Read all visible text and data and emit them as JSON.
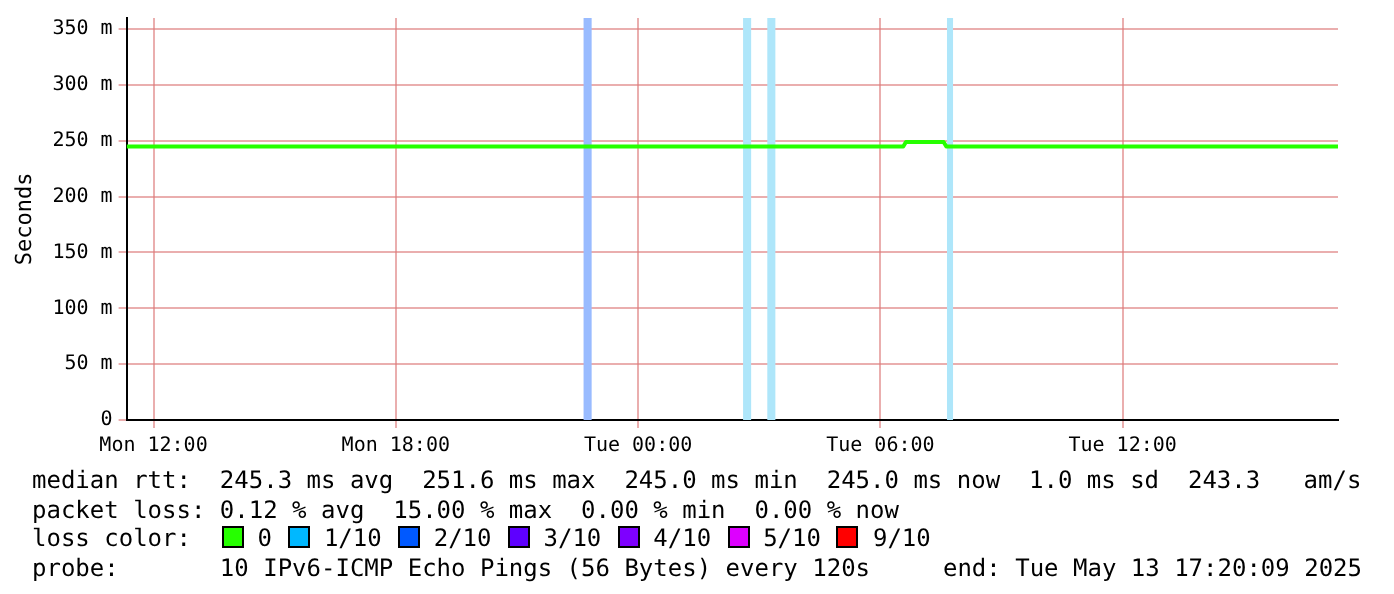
{
  "chart_data": {
    "type": "line",
    "ylabel": "Seconds",
    "x": [
      "2025-05-12T11:20",
      "2025-05-13T06:34",
      "2025-05-13T06:38",
      "2025-05-13T07:34",
      "2025-05-13T07:38",
      "2025-05-13T17:20"
    ],
    "series": [
      {
        "name": "0",
        "color": "#26ff00",
        "values": [
          245,
          245,
          249,
          249,
          245,
          245
        ]
      },
      {
        "name": "1/10",
        "color": "#00b8ff",
        "values": [
          null,
          null,
          null,
          null,
          null,
          null
        ]
      },
      {
        "name": "2/10",
        "color": "#0059ff",
        "values": [
          null,
          null,
          null,
          null,
          null,
          null
        ]
      },
      {
        "name": "3/10",
        "color": "#5e00ff",
        "values": [
          null,
          null,
          null,
          null,
          null,
          null
        ]
      },
      {
        "name": "4/10",
        "color": "#7e00ff",
        "values": [
          null,
          null,
          null,
          null,
          null,
          null
        ]
      },
      {
        "name": "5/10",
        "color": "#dd00ff",
        "values": [
          null,
          null,
          null,
          null,
          null,
          null
        ]
      },
      {
        "name": "9/10",
        "color": "#ff0000",
        "values": [
          null,
          null,
          null,
          null,
          null,
          null
        ]
      }
    ],
    "xlim": [
      "2025-05-12T11:20",
      "2025-05-13T17:20"
    ],
    "xticks": [
      {
        "value": "2025-05-12T12:00",
        "label": "Mon 12:00"
      },
      {
        "value": "2025-05-12T18:00",
        "label": "Mon 18:00"
      },
      {
        "value": "2025-05-13T00:00",
        "label": "Tue 00:00"
      },
      {
        "value": "2025-05-13T06:00",
        "label": "Tue 06:00"
      },
      {
        "value": "2025-05-13T12:00",
        "label": "Tue 12:00"
      }
    ],
    "ylim": [
      0,
      360
    ],
    "yticks": [
      {
        "value": 0,
        "label": "0"
      },
      {
        "value": 50,
        "label": "50 m"
      },
      {
        "value": 100,
        "label": "100 m"
      },
      {
        "value": 150,
        "label": "150 m"
      },
      {
        "value": 200,
        "label": "200 m"
      },
      {
        "value": 250,
        "label": "250 m"
      },
      {
        "value": 300,
        "label": "300 m"
      },
      {
        "value": 350,
        "label": "350 m"
      }
    ],
    "bands": [
      {
        "axis": "x",
        "from": "2025-05-12T22:39",
        "to": "2025-05-12T22:51",
        "color": "#99bbff"
      },
      {
        "axis": "x",
        "from": "2025-05-13T02:36",
        "to": "2025-05-13T02:48",
        "color": "#aee6fa"
      },
      {
        "axis": "x",
        "from": "2025-05-13T03:12",
        "to": "2025-05-13T03:24",
        "color": "#aee6fa"
      },
      {
        "axis": "x",
        "from": "2025-05-13T07:39",
        "to": "2025-05-13T07:48",
        "color": "#aee6fa"
      }
    ],
    "grid": true,
    "legend": "bottom",
    "marker": "none",
    "annotations": [
      "median rtt:  245.3 ms avg  251.6 ms max  245.0 ms min  245.0 ms now  1.0 ms sd  243.3   am/s",
      "packet loss: 0.12 % avg  15.00 % max  0.00 % min  0.00 % now",
      "loss color:",
      "probe:       10 IPv6-ICMP Echo Pings (56 Bytes) every 120s",
      "end: Tue May 13 17:20:09 2025"
    ]
  }
}
